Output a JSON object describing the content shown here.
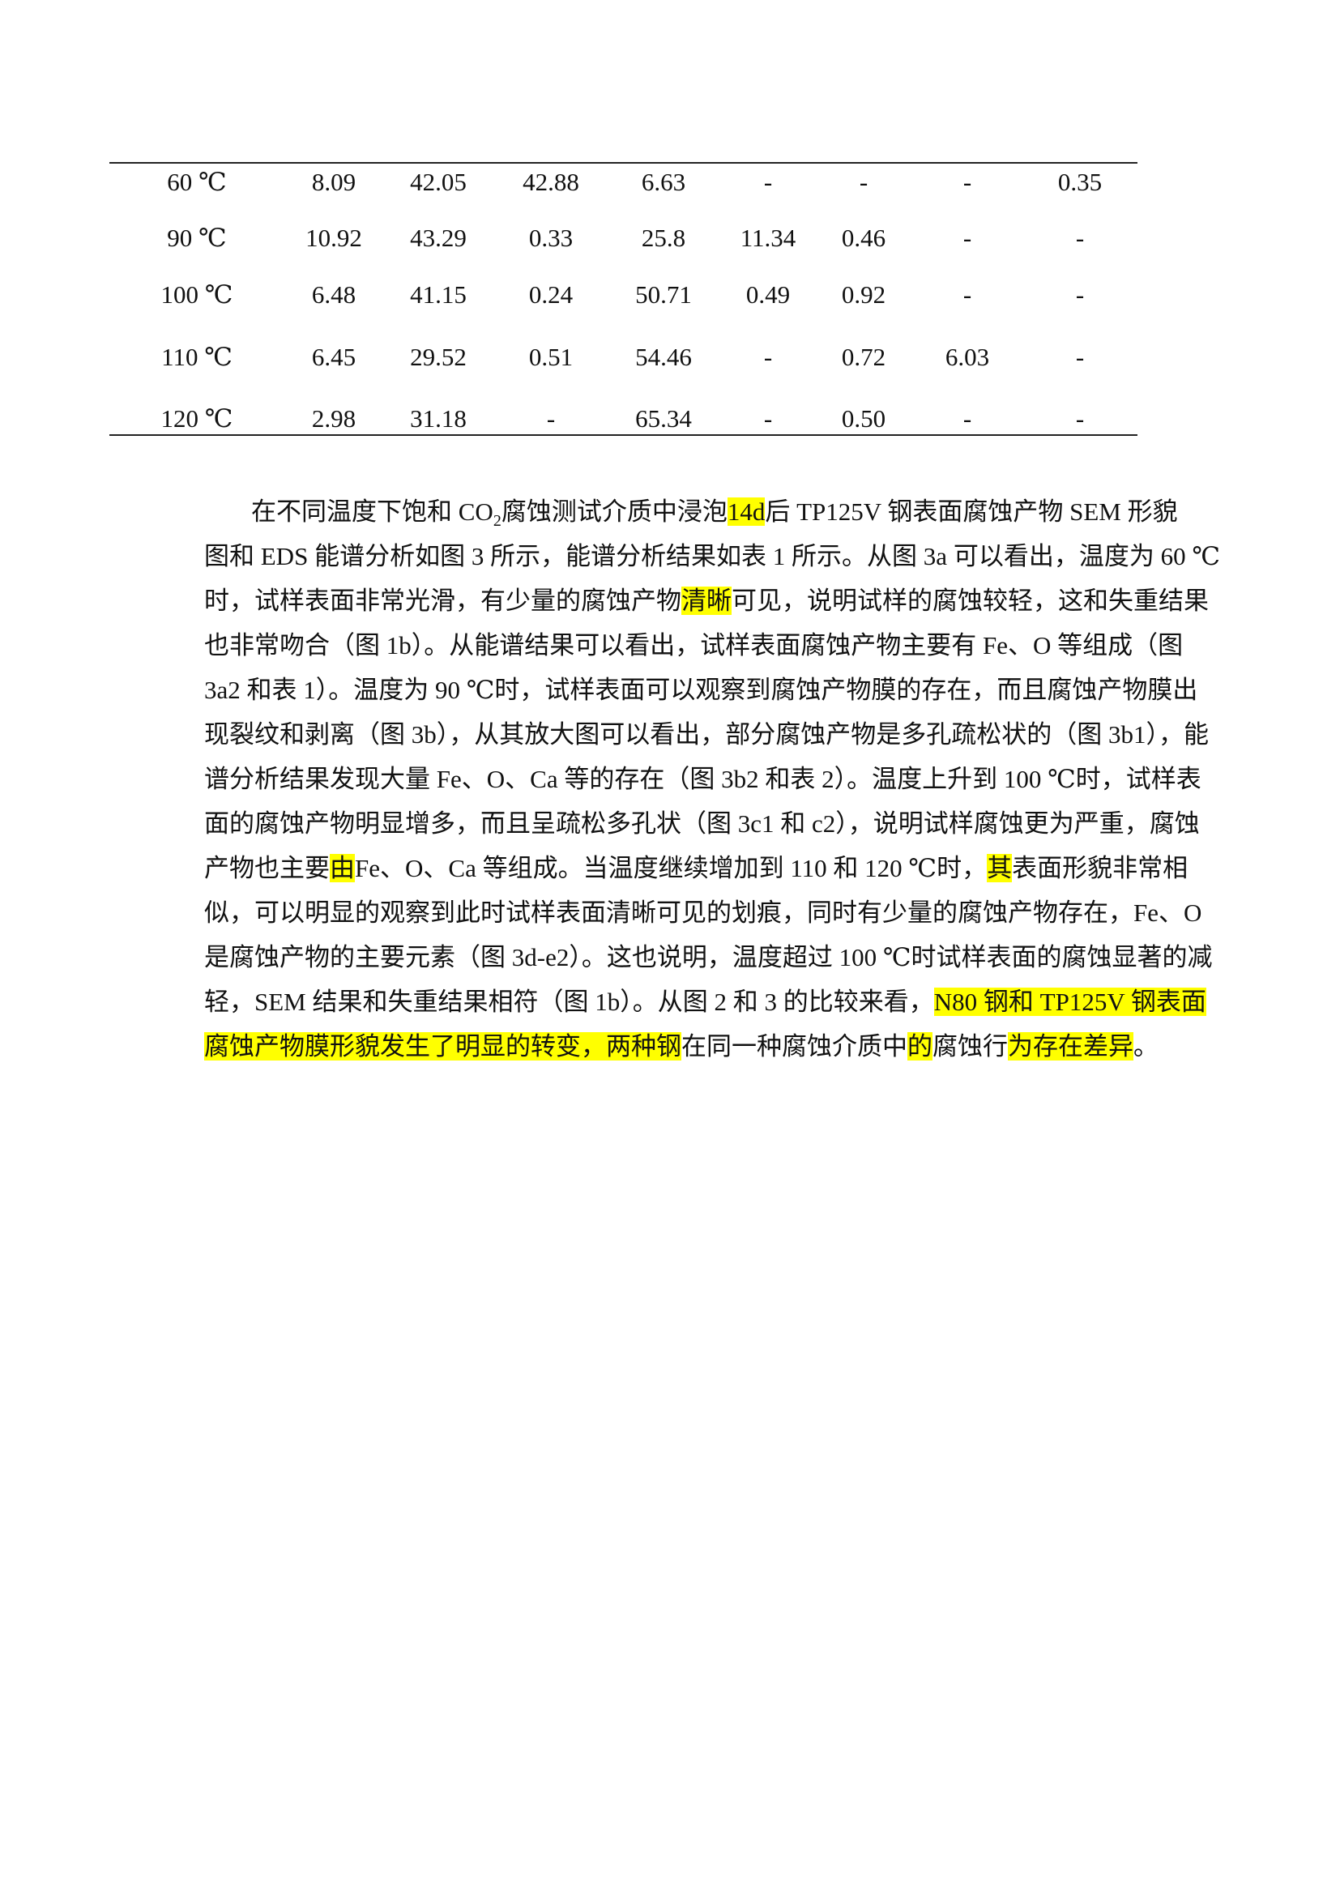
{
  "table": {
    "rows": [
      [
        "60 ℃",
        "8.09",
        "42.05",
        "42.88",
        "6.63",
        "-",
        "-",
        "-",
        "0.35"
      ],
      [
        "90 ℃",
        "10.92",
        "43.29",
        "0.33",
        "25.8",
        "11.34",
        "0.46",
        "-",
        "-"
      ],
      [
        "100 ℃",
        "6.48",
        "41.15",
        "0.24",
        "50.71",
        "0.49",
        "0.92",
        "-",
        "-"
      ],
      [
        "110 ℃",
        "6.45",
        "29.52",
        "0.51",
        "54.46",
        "-",
        "0.72",
        "6.03",
        "-"
      ],
      [
        "120 ℃",
        "2.98",
        "31.18",
        "-",
        "65.34",
        "-",
        "0.50",
        "-",
        "-"
      ]
    ]
  },
  "paragraph": {
    "lines": [
      [
        {
          "text": "在不同温度下饱和 CO",
          "style": "normal"
        },
        {
          "text": "2",
          "style": "subscript"
        },
        {
          "text": "腐蚀测试介质中浸泡",
          "style": "normal"
        },
        {
          "text": "14d",
          "style": "highlight"
        },
        {
          "text": "后 TP125V 钢表面腐蚀产物 SEM 形貌",
          "style": "normal"
        }
      ],
      [
        {
          "text": "图和 EDS 能谱分析如图 3 所示，能谱分析结果如表 1 所示。从图 3a 可以看出，温度为 60 ℃",
          "style": "normal"
        }
      ],
      [
        {
          "text": "时，试样表面非常光滑，有少量的腐蚀产物",
          "style": "normal"
        },
        {
          "text": "清晰",
          "style": "highlight"
        },
        {
          "text": "可见，说明试样的腐蚀较轻，这和失重结果",
          "style": "normal"
        }
      ],
      [
        {
          "text": "也非常吻合（图 1b）。从能谱结果可以看出，试样表面腐蚀产物主要有 Fe、O 等组成（图",
          "style": "normal"
        }
      ],
      [
        {
          "text": "3a2 和表 1）。温度为 90 ℃时，试样表面可以观察到腐蚀产物膜的存在，而且腐蚀产物膜出",
          "style": "normal"
        }
      ],
      [
        {
          "text": "现裂纹和剥离（图 3b），从其放大图可以看出，部分腐蚀产物是多孔疏松状的（图 3b1），能",
          "style": "normal"
        }
      ],
      [
        {
          "text": "谱分析结果发现大量 Fe、O、Ca 等的存在（图 3b2 和表 2）。温度上升到 100 ℃时，试样表",
          "style": "normal"
        }
      ],
      [
        {
          "text": "面的腐蚀产物明显增多，而且呈疏松多孔状（图 3c1 和 c2），说明试样腐蚀更为严重，腐蚀",
          "style": "normal"
        }
      ],
      [
        {
          "text": "产物也主要",
          "style": "normal"
        },
        {
          "text": "由",
          "style": "highlight"
        },
        {
          "text": "Fe、O、Ca 等组成。当温度继续增加到 110 和 120 ℃时，",
          "style": "normal"
        },
        {
          "text": "其",
          "style": "highlight"
        },
        {
          "text": "表面形貌非常相",
          "style": "normal"
        }
      ],
      [
        {
          "text": "似，可以明显的观察到此时试样表面清晰可见的划痕，同时有少量的腐蚀产物存在，Fe、O",
          "style": "normal"
        }
      ],
      [
        {
          "text": "是腐蚀产物的主要元素（图 3d-e2）。这也说明，温度超过 100 ℃时试样表面的腐蚀显著的减",
          "style": "normal"
        }
      ],
      [
        {
          "text": "轻，SEM 结果和失重结果相符（图 1b）。从图 2 和 3 的比较来看，",
          "style": "normal"
        },
        {
          "text": "N80 钢和 TP125V 钢表面",
          "style": "highlight"
        }
      ],
      [
        {
          "text": "腐蚀产物膜形貌发生了明显的转变，两种钢",
          "style": "highlight"
        },
        {
          "text": "在同一种腐蚀介质中",
          "style": "normal"
        },
        {
          "text": "的",
          "style": "highlight"
        },
        {
          "text": "腐蚀行",
          "style": "normal"
        },
        {
          "text": "为存在差异",
          "style": "highlight"
        },
        {
          "text": "。",
          "style": "normal"
        }
      ]
    ]
  }
}
